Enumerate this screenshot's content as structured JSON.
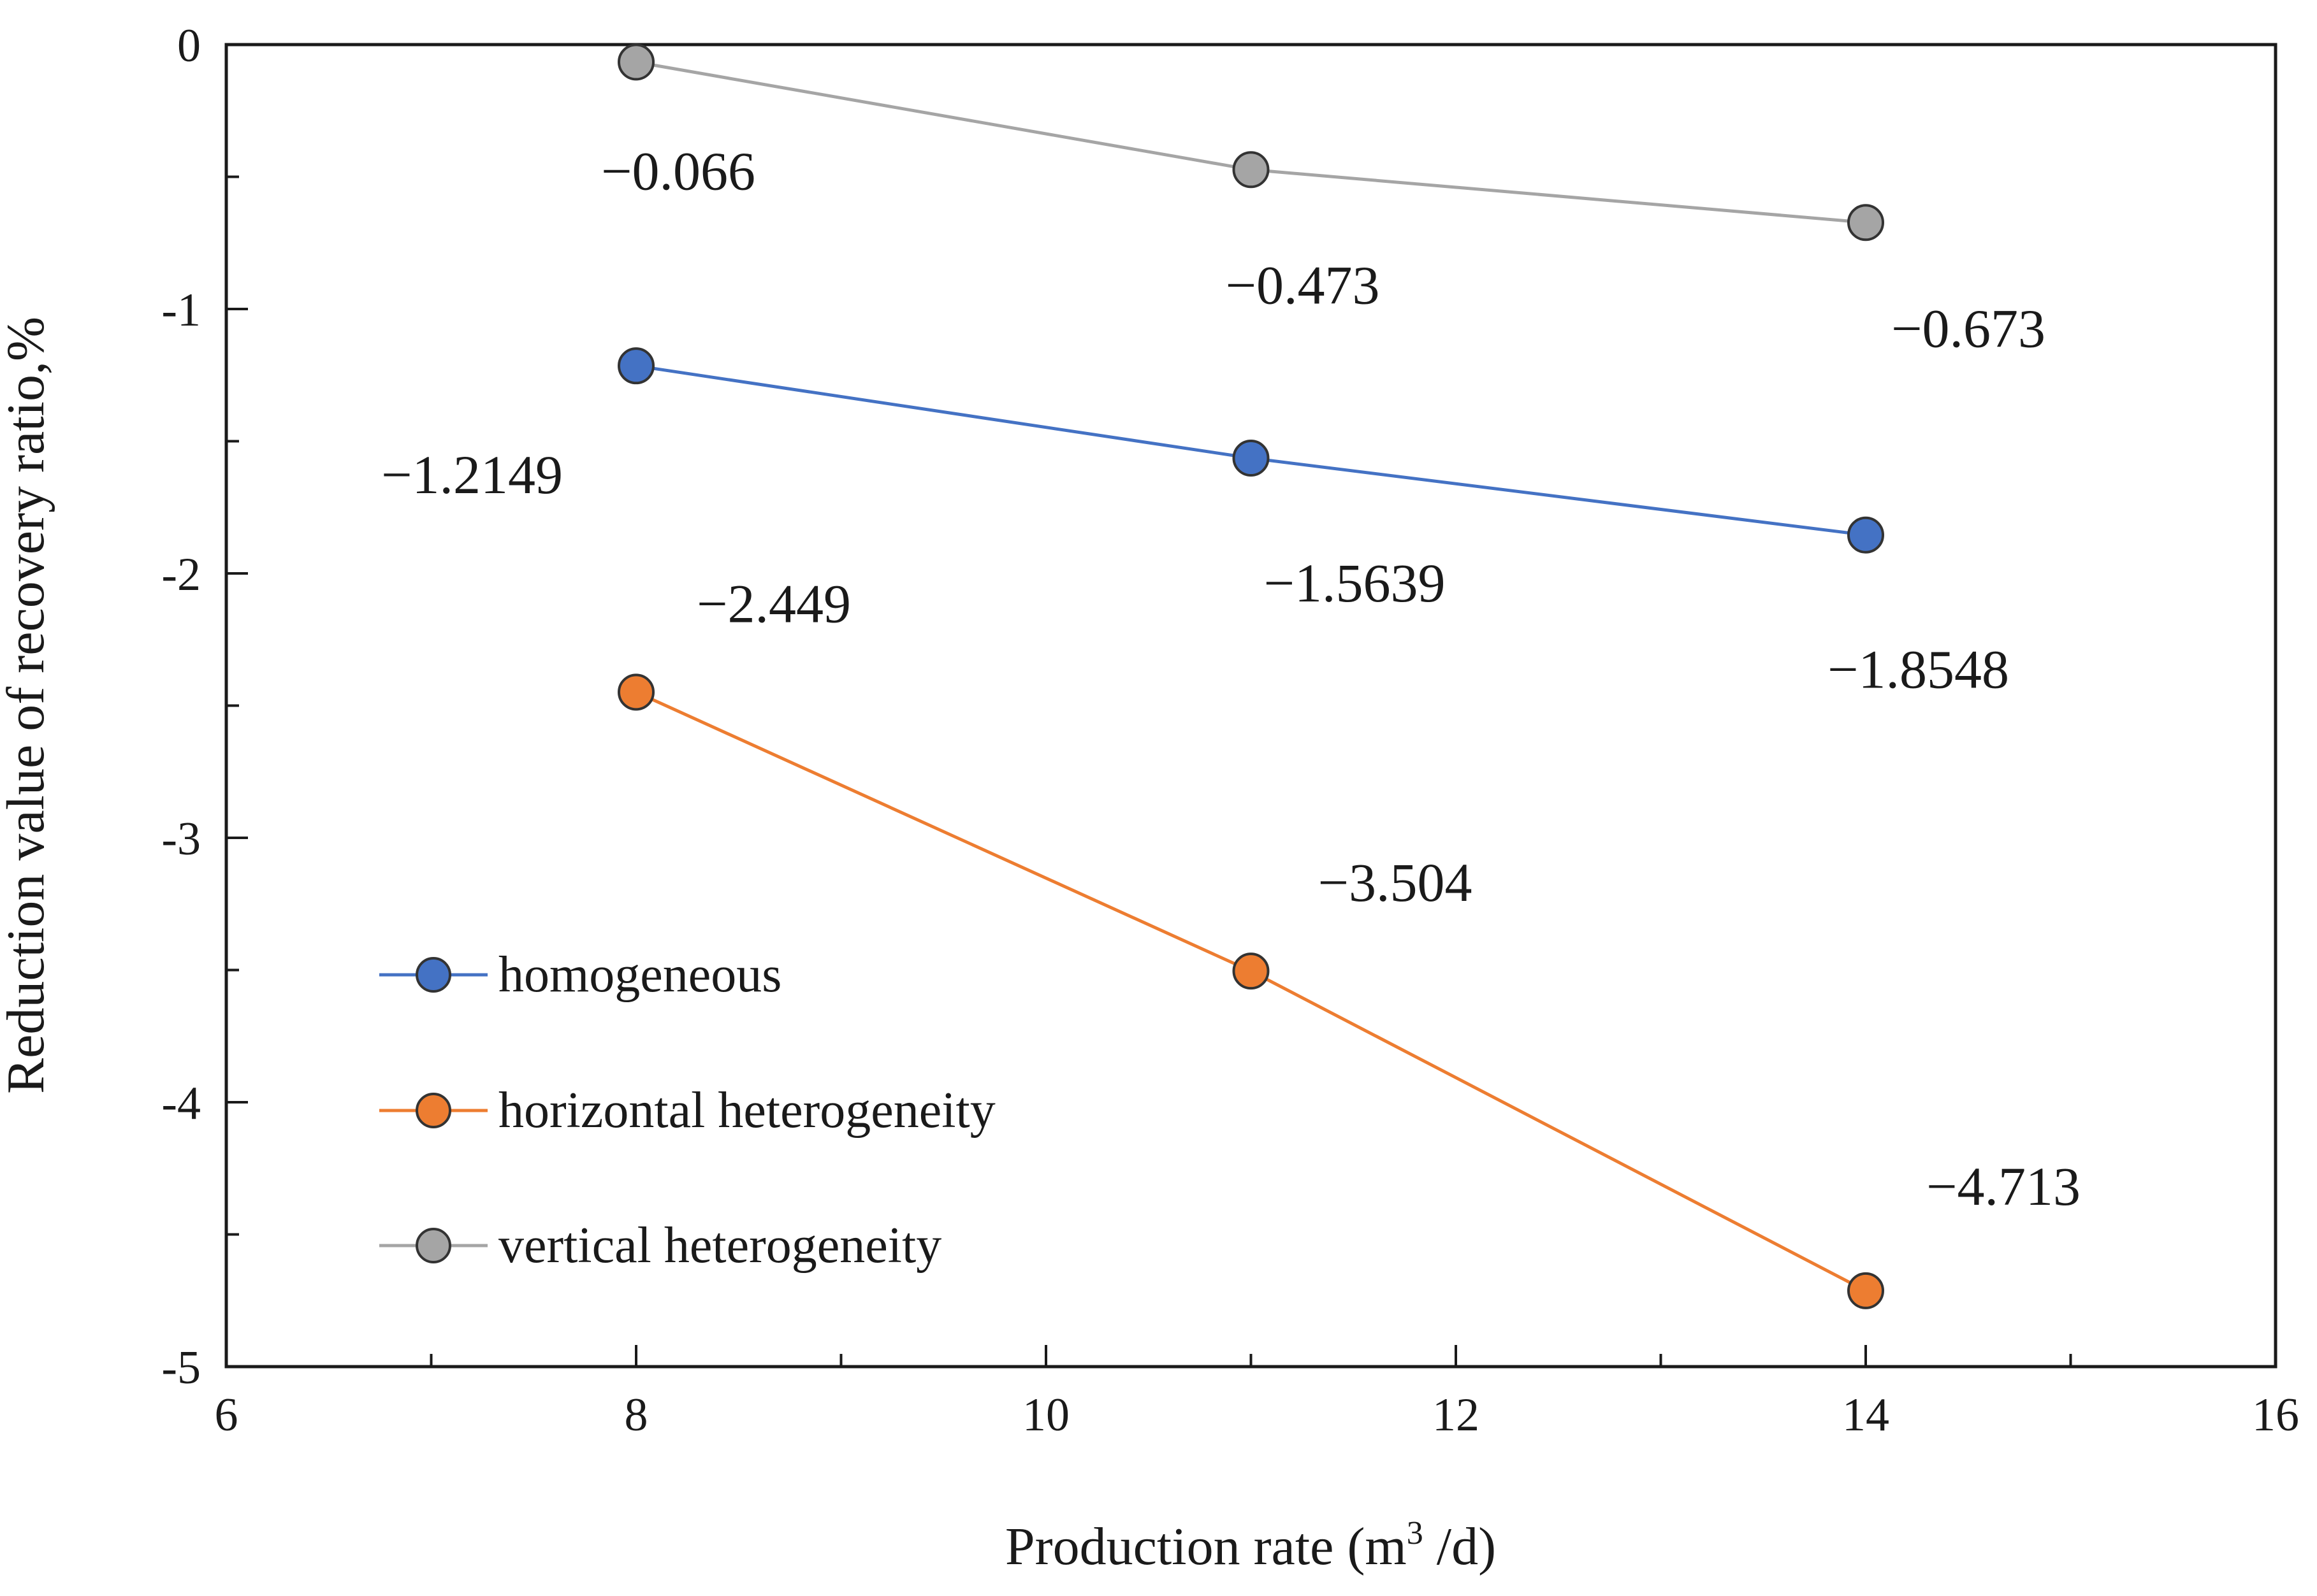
{
  "chart_data": {
    "type": "line",
    "title": "",
    "xlabel": "Production rate (m",
    "xlabel_sup": "3",
    "xlabel_suffix": " /d)",
    "ylabel": "Reduction value of recovery ratio,%",
    "xlim": [
      6,
      16
    ],
    "ylim": [
      -5,
      0
    ],
    "x_ticks": [
      6,
      8,
      10,
      12,
      14,
      16
    ],
    "y_ticks": [
      0,
      -1,
      -2,
      -3,
      -4,
      -5
    ],
    "x_tick_labels": [
      "6",
      "8",
      "10",
      "12",
      "14",
      "16"
    ],
    "y_tick_labels": [
      "0",
      "-1",
      "-2",
      "-3",
      "-4",
      "-5"
    ],
    "grid": false,
    "legend_position": "left",
    "series": [
      {
        "name": "homogeneous",
        "color": "#4472C4",
        "x": [
          8,
          11,
          14
        ],
        "values": [
          -1.2149,
          -1.5639,
          -1.8548
        ],
        "labels": [
          "−1.2149",
          "−1.5639",
          "−1.8548"
        ]
      },
      {
        "name": "horizontal heterogeneity",
        "color": "#ED7D31",
        "x": [
          8,
          11,
          14
        ],
        "values": [
          -2.449,
          -3.504,
          -4.713
        ],
        "labels": [
          "−2.449",
          "−3.504",
          "−4.713"
        ]
      },
      {
        "name": "vertical heterogeneity",
        "color": "#A5A5A5",
        "x": [
          8,
          11,
          14
        ],
        "values": [
          -0.066,
          -0.473,
          -0.673
        ],
        "labels": [
          "−0.066",
          "−0.473",
          "−0.673"
        ]
      }
    ]
  }
}
